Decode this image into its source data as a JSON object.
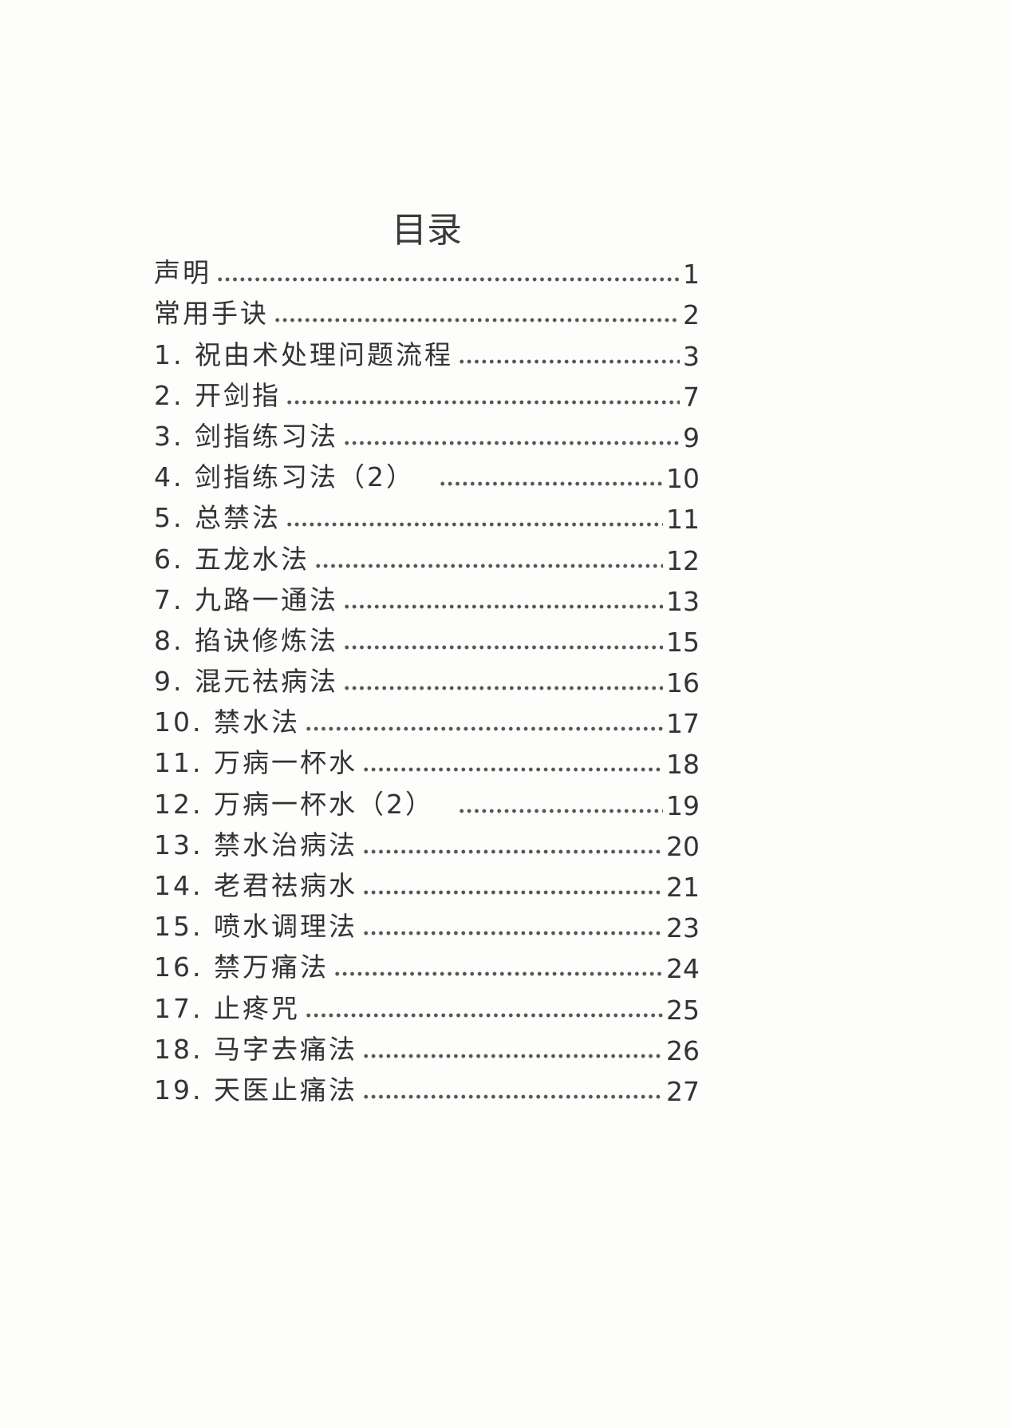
{
  "title": "目录",
  "entries": [
    {
      "label": "声明",
      "page": "1"
    },
    {
      "label": "常用手诀",
      "page": "2"
    },
    {
      "label": "1. 祝由术处理问题流程",
      "page": "3"
    },
    {
      "label": "2. 开剑指",
      "page": "7"
    },
    {
      "label": "3. 剑指练习法",
      "page": "9"
    },
    {
      "label": "4. 剑指练习法（2）",
      "page": "10"
    },
    {
      "label": "5. 总禁法",
      "page": "11"
    },
    {
      "label": "6. 五龙水法",
      "page": "12"
    },
    {
      "label": "7. 九路一通法",
      "page": "13"
    },
    {
      "label": "8. 掐诀修炼法",
      "page": "15"
    },
    {
      "label": "9. 混元祛病法",
      "page": "16"
    },
    {
      "label": "10. 禁水法",
      "page": "17"
    },
    {
      "label": "11. 万病一杯水",
      "page": "18"
    },
    {
      "label": "12. 万病一杯水（2）",
      "page": "19"
    },
    {
      "label": "13. 禁水治病法",
      "page": "20"
    },
    {
      "label": "14. 老君祛病水",
      "page": "21"
    },
    {
      "label": "15. 喷水调理法",
      "page": "23"
    },
    {
      "label": "16. 禁万痛法",
      "page": "24"
    },
    {
      "label": "17. 止疼咒",
      "page": "25"
    },
    {
      "label": "18. 马字去痛法",
      "page": "26"
    },
    {
      "label": "19. 天医止痛法",
      "page": "27"
    }
  ]
}
